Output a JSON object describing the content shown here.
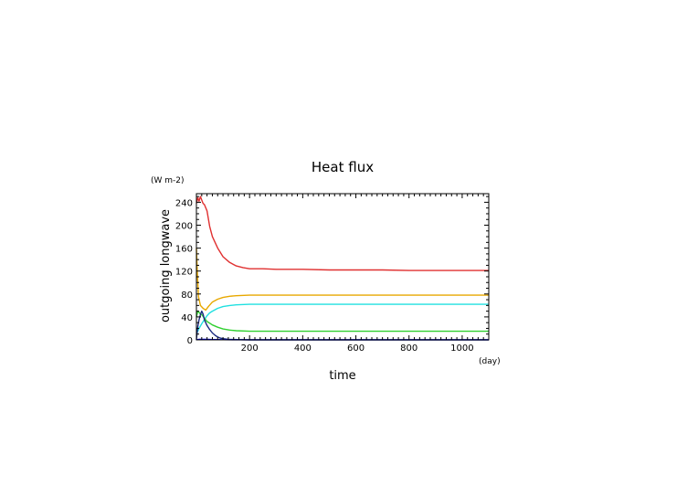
{
  "chart_data": {
    "type": "line",
    "title": "Heat flux",
    "xlabel": "time",
    "ylabel": "outgoing longwave",
    "x_unit": "(day)",
    "y_unit": "(W m-2)",
    "xlim": [
      0,
      1100
    ],
    "ylim": [
      0,
      255
    ],
    "x_ticks": [
      200,
      400,
      600,
      800,
      1000
    ],
    "x_tick_labels": [
      "200",
      "400",
      "600",
      "800",
      "1000"
    ],
    "y_ticks": [
      0,
      40,
      80,
      120,
      160,
      200,
      240
    ],
    "y_tick_labels": [
      "0",
      "40",
      "80",
      "120",
      "160",
      "200",
      "240"
    ],
    "grid": false,
    "series": [
      {
        "color": "#e03030",
        "x": [
          0,
          5,
          10,
          15,
          20,
          25,
          30,
          40,
          50,
          60,
          80,
          100,
          125,
          150,
          175,
          200,
          250,
          300,
          400,
          500,
          600,
          700,
          800,
          900,
          1000,
          1100
        ],
        "y": [
          238,
          248,
          242,
          250,
          244,
          238,
          236,
          225,
          198,
          180,
          160,
          145,
          135,
          129,
          126,
          124,
          124,
          123,
          123,
          122,
          122,
          122,
          121,
          121,
          121,
          121
        ]
      },
      {
        "color": "#e8a800",
        "x": [
          0,
          3,
          8,
          15,
          25,
          35,
          45,
          60,
          80,
          100,
          125,
          150,
          200,
          300,
          400,
          500,
          600,
          700,
          800,
          900,
          1000,
          1100
        ],
        "y": [
          160,
          120,
          75,
          60,
          55,
          52,
          58,
          66,
          71,
          74,
          76,
          77,
          78,
          78,
          78,
          78,
          78,
          78,
          78,
          78,
          78,
          78
        ]
      },
      {
        "color": "#20e0e0",
        "x": [
          0,
          5,
          10,
          20,
          30,
          40,
          50,
          60,
          80,
          100,
          125,
          150,
          200,
          250,
          300,
          400,
          500,
          600,
          700,
          800,
          900,
          1000,
          1100
        ],
        "y": [
          10,
          15,
          20,
          28,
          35,
          42,
          47,
          50,
          55,
          58,
          60,
          61,
          62,
          62,
          62,
          62,
          62,
          62,
          62,
          62,
          62,
          62,
          62
        ]
      },
      {
        "color": "#30d030",
        "x": [
          0,
          5,
          10,
          15,
          20,
          30,
          40,
          60,
          80,
          100,
          125,
          150,
          200,
          300,
          400,
          500,
          600,
          700,
          800,
          900,
          1000,
          1100
        ],
        "y": [
          40,
          50,
          48,
          45,
          44,
          38,
          32,
          26,
          22,
          19,
          17,
          16,
          15,
          15,
          15,
          15,
          15,
          15,
          15,
          15,
          15,
          15
        ]
      },
      {
        "color": "#1a2a80",
        "x": [
          0,
          3,
          6,
          10,
          15,
          20,
          25,
          30,
          40,
          50,
          60,
          70,
          80,
          90,
          100,
          120,
          150,
          200,
          400,
          600,
          800,
          1000,
          1100
        ],
        "y": [
          0,
          15,
          25,
          35,
          44,
          50,
          45,
          35,
          25,
          18,
          12,
          8,
          5,
          3,
          2,
          1,
          0.5,
          0,
          0,
          0,
          0,
          0,
          0
        ]
      },
      {
        "color": "#0000e0",
        "x": [
          0,
          10,
          20,
          40,
          60,
          80,
          100,
          150,
          200,
          400,
          600,
          800,
          1000,
          1100
        ],
        "y": [
          0,
          1,
          1,
          1,
          0.5,
          0.5,
          0.3,
          0.2,
          0.1,
          0.1,
          0.1,
          0.1,
          0.1,
          0.1
        ]
      }
    ]
  }
}
